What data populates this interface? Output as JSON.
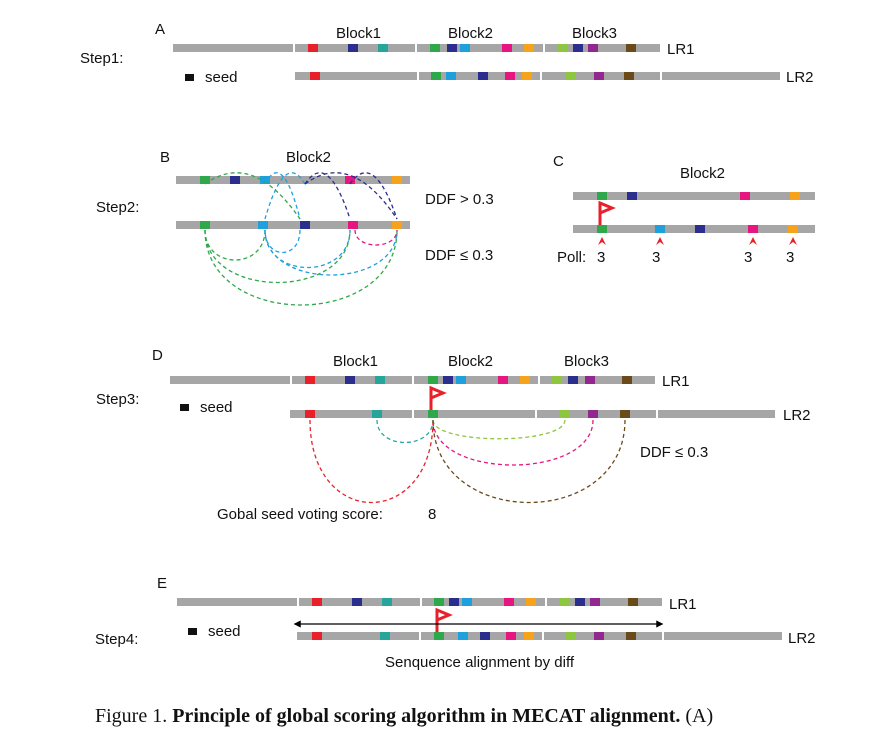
{
  "panels": [
    {
      "label": "A",
      "step": "Step1:",
      "blocks": [
        "Block1",
        "Block2",
        "Block3"
      ],
      "reads": [
        "LR1",
        "LR2"
      ],
      "legend": "seed"
    },
    {
      "label": "B",
      "step": "Step2:",
      "block": "Block2",
      "conditions": [
        "DDF > 0.3",
        "DDF ≤ 0.3"
      ]
    },
    {
      "label": "C",
      "block": "Block2",
      "poll_label": "Poll:",
      "votes": [
        3,
        3,
        3,
        3
      ]
    },
    {
      "label": "D",
      "step": "Step3:",
      "blocks": [
        "Block1",
        "Block2",
        "Block3"
      ],
      "reads": [
        "LR1",
        "LR2"
      ],
      "legend": "seed",
      "condition": "DDF ≤ 0.3",
      "score_label": "Gobal seed voting score:",
      "score": 8
    },
    {
      "label": "E",
      "step": "Step4:",
      "reads": [
        "LR1",
        "LR2"
      ],
      "legend": "seed",
      "alignment": "Senquence alignment by diff"
    }
  ],
  "caption": {
    "prefix": "Figure 1.",
    "title": "Principle of global scoring algorithm in MECAT alignment.",
    "suffix": "(A)"
  }
}
